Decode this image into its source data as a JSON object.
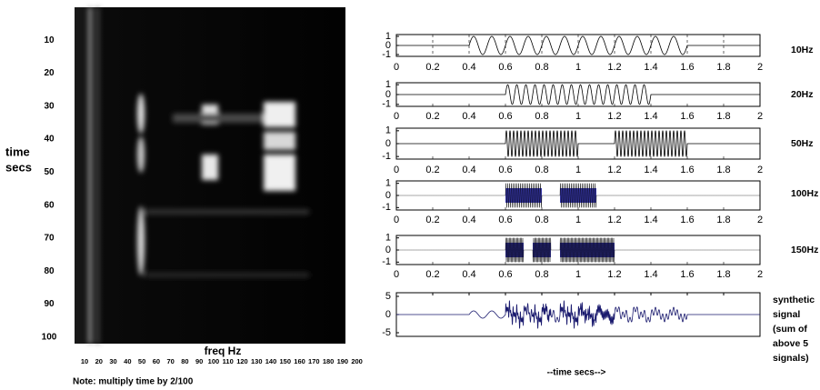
{
  "chart_data": [
    {
      "type": "heatmap",
      "ylabel": [
        "time",
        "secs"
      ],
      "xlabel": "freq Hz",
      "note": "Note:  multiply time by 2/100",
      "ylim": [
        0,
        102
      ],
      "yticks": [
        10,
        20,
        30,
        40,
        50,
        60,
        70,
        80,
        90,
        100
      ],
      "xlim": [
        3,
        192
      ],
      "xticks": [
        10,
        20,
        30,
        40,
        50,
        60,
        70,
        80,
        90,
        100,
        110,
        120,
        130,
        140,
        150,
        160,
        170,
        180,
        190,
        200
      ]
    },
    {
      "type": "line",
      "label": "10Hz",
      "frequency": 10,
      "intervals": [
        [
          0.4,
          1.6
        ]
      ],
      "grid": true,
      "color": "#000000",
      "xlim": [
        0,
        2
      ],
      "xticks": [
        0,
        0.2,
        0.4,
        0.6,
        0.8,
        1,
        1.2,
        1.4,
        1.6,
        1.8,
        2
      ],
      "ylim": [
        -1.2,
        1.2
      ],
      "yticks": [
        -1,
        0,
        1
      ]
    },
    {
      "type": "line",
      "label": "20Hz",
      "frequency": 20,
      "intervals": [
        [
          0.6,
          1.4
        ]
      ],
      "grid": false,
      "color": "#000000",
      "xlim": [
        0,
        2
      ],
      "xticks": [
        0,
        0.2,
        0.4,
        0.6,
        0.8,
        1,
        1.2,
        1.4,
        1.6,
        1.8,
        2
      ],
      "ylim": [
        -1.2,
        1.2
      ],
      "yticks": [
        -1,
        0,
        1
      ]
    },
    {
      "type": "line",
      "label": "50Hz",
      "frequency": 50,
      "intervals": [
        [
          0.6,
          1.0
        ],
        [
          1.2,
          1.6
        ]
      ],
      "grid": false,
      "color": "#000000",
      "xlim": [
        0,
        2
      ],
      "xticks": [
        0,
        0.2,
        0.4,
        0.6,
        0.8,
        1,
        1.2,
        1.4,
        1.6,
        1.8,
        2
      ],
      "ylim": [
        -1.2,
        1.2
      ],
      "yticks": [
        -1,
        0,
        1
      ]
    },
    {
      "type": "line",
      "label": "100Hz",
      "frequency": 100,
      "intervals": [
        [
          0.6,
          0.8
        ],
        [
          0.9,
          1.1
        ]
      ],
      "grid": false,
      "color": "#3b3bb5",
      "xlim": [
        0,
        2
      ],
      "xticks": [
        0,
        0.2,
        0.4,
        0.6,
        0.8,
        1,
        1.2,
        1.4,
        1.6,
        1.8,
        2
      ],
      "ylim": [
        -1.2,
        1.2
      ],
      "yticks": [
        -1,
        0,
        1
      ]
    },
    {
      "type": "line",
      "label": "150Hz",
      "frequency": 150,
      "intervals": [
        [
          0.6,
          0.7
        ],
        [
          0.75,
          0.85
        ],
        [
          0.9,
          1.2
        ]
      ],
      "grid": false,
      "color": "#3b3bb5",
      "xlim": [
        0,
        2
      ],
      "xticks": [
        0,
        0.2,
        0.4,
        0.6,
        0.8,
        1,
        1.2,
        1.4,
        1.6,
        1.8,
        2
      ],
      "ylim": [
        -1.2,
        1.2
      ],
      "yticks": [
        -1,
        0,
        1
      ]
    },
    {
      "type": "sum",
      "label": [
        "synthetic",
        "signal",
        "(sum of",
        "above 5",
        "signals)"
      ],
      "xlabel": "--time secs-->",
      "color": "#1a1a6e",
      "xlim": [
        0,
        2
      ],
      "ylim": [
        -6,
        6
      ],
      "yticks": [
        -5,
        0,
        5
      ]
    }
  ]
}
